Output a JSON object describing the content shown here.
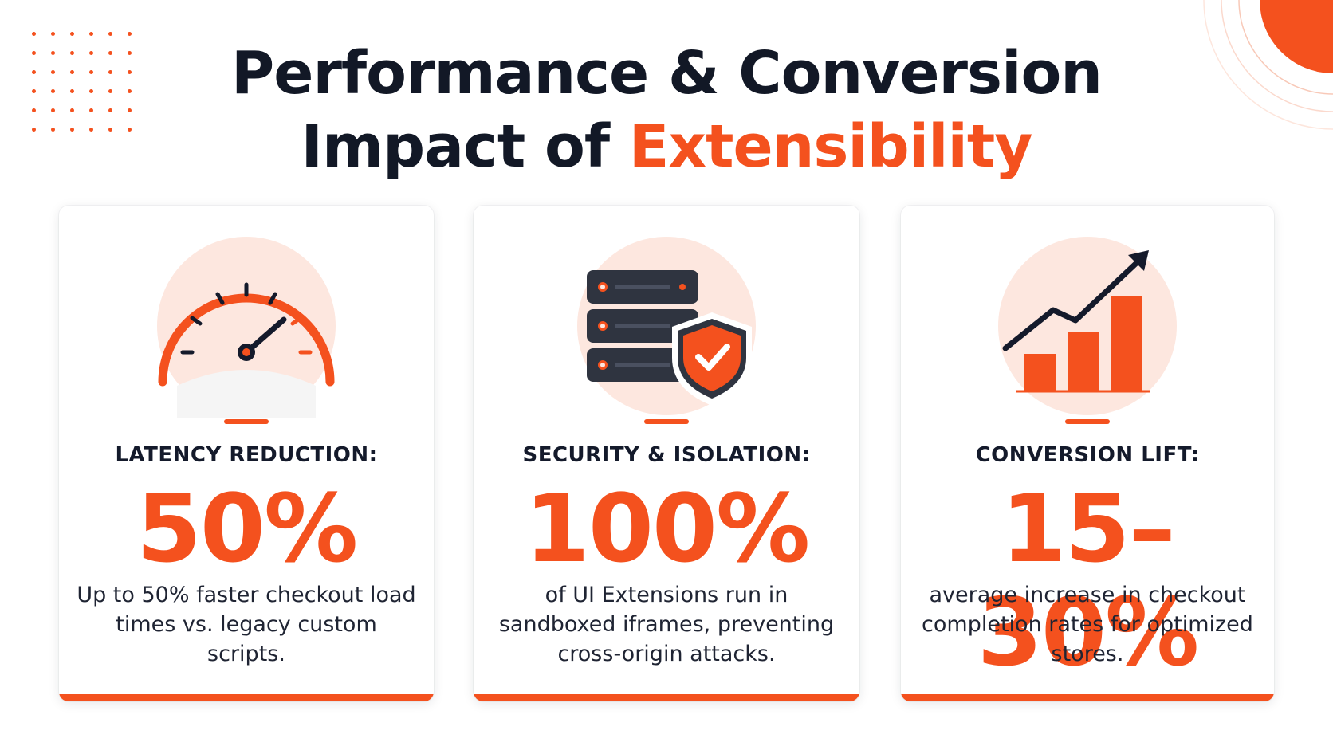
{
  "title": {
    "line1": "Performance & Conversion",
    "line2_prefix": "Impact of ",
    "line2_accent": "Extensibility"
  },
  "colors": {
    "accent": "#f4511e",
    "accent_soft": "#fde7df",
    "dark": "#141a2b",
    "server": "#2f3440"
  },
  "cards": [
    {
      "icon": "speedometer-icon",
      "label": "LATENCY REDUCTION:",
      "stat": "50%",
      "description": "Up to 50% faster checkout load times vs. legacy custom scripts."
    },
    {
      "icon": "server-shield-icon",
      "label": "SECURITY & ISOLATION:",
      "stat": "100%",
      "description": "of UI Extensions run in sandboxed iframes, preventing cross-origin attacks."
    },
    {
      "icon": "growth-chart-icon",
      "label": "CONVERSION LIFT:",
      "stat": "15–30%",
      "description": "average increase in checkout completion rates for optimized stores."
    }
  ]
}
